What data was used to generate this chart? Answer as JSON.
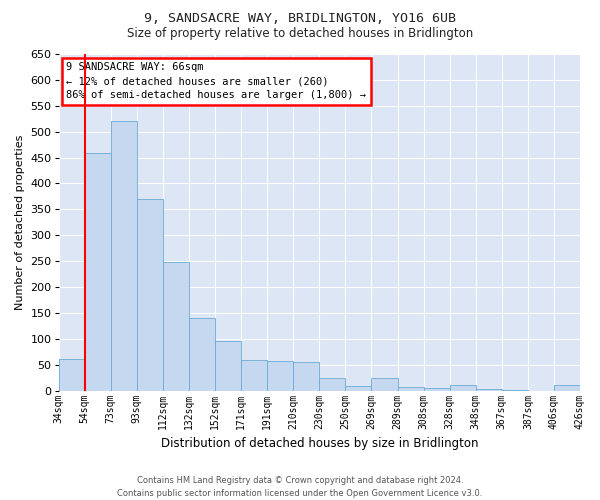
{
  "title1": "9, SANDSACRE WAY, BRIDLINGTON, YO16 6UB",
  "title2": "Size of property relative to detached houses in Bridlington",
  "xlabel": "Distribution of detached houses by size in Bridlington",
  "ylabel": "Number of detached properties",
  "bar_labels": [
    "34sqm",
    "54sqm",
    "73sqm",
    "93sqm",
    "112sqm",
    "132sqm",
    "152sqm",
    "171sqm",
    "191sqm",
    "210sqm",
    "230sqm",
    "250sqm",
    "269sqm",
    "289sqm",
    "308sqm",
    "328sqm",
    "348sqm",
    "367sqm",
    "387sqm",
    "406sqm",
    "426sqm"
  ],
  "bar_values": [
    62,
    458,
    520,
    370,
    248,
    140,
    95,
    60,
    57,
    55,
    25,
    8,
    25,
    7,
    5,
    10,
    3,
    2,
    0,
    10
  ],
  "bar_color": "#c5d8ef",
  "bar_edge_color": "#6aaad4",
  "bg_color": "#dce6f5",
  "grid_color": "#ffffff",
  "red_line_x": 1.0,
  "annotation_title": "9 SANDSACRE WAY: 66sqm",
  "annotation_line1": "← 12% of detached houses are smaller (260)",
  "annotation_line2": "86% of semi-detached houses are larger (1,800) →",
  "footnote1": "Contains HM Land Registry data © Crown copyright and database right 2024.",
  "footnote2": "Contains public sector information licensed under the Open Government Licence v3.0.",
  "ylim": [
    0,
    650
  ],
  "yticks": [
    0,
    50,
    100,
    150,
    200,
    250,
    300,
    350,
    400,
    450,
    500,
    550,
    600,
    650
  ]
}
